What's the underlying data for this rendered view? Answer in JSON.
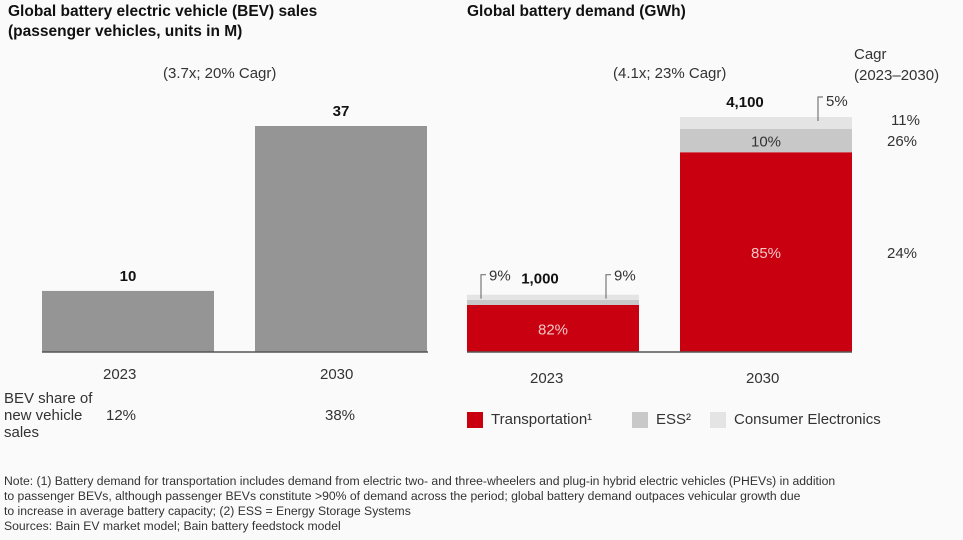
{
  "chart_data": [
    {
      "type": "bar",
      "title": "Global battery electric vehicle (BEV) sales",
      "subtitle": "(passenger vehicles, units in M)",
      "annotation": "(3.7x; 20% Cagr)",
      "categories": [
        "2023",
        "2030"
      ],
      "values": [
        10,
        37
      ],
      "value_labels": [
        "10",
        "37"
      ],
      "ylim": [
        0,
        37
      ],
      "grid": false,
      "bar_color": "#959595",
      "bottom_table": {
        "label": "BEV share of new vehicle sales",
        "label_lines": [
          "BEV share of",
          "new vehicle",
          "sales"
        ],
        "values": [
          "12%",
          "38%"
        ]
      }
    },
    {
      "type": "bar",
      "stacked": true,
      "title": "Global battery demand (GWh)",
      "annotation": "(4.1x; 23% Cagr)",
      "categories": [
        "2023",
        "2030"
      ],
      "totals": [
        1000,
        4100
      ],
      "total_labels": [
        "1,000",
        "4,100"
      ],
      "ylim": [
        0,
        4100
      ],
      "grid": false,
      "series": [
        {
          "name": "Transportation¹",
          "color": "#c8000f",
          "values": [
            82,
            85
          ],
          "labels": [
            "82%",
            "85%"
          ],
          "cagr": "24%"
        },
        {
          "name": "ESS²",
          "color": "#c8c8c8",
          "values": [
            9,
            10
          ],
          "labels": [
            "9%",
            "10%"
          ],
          "cagr": "26%"
        },
        {
          "name": "Consumer Electronics",
          "color": "#e4e4e4",
          "values": [
            9,
            5
          ],
          "labels": [
            "9%",
            "5%"
          ],
          "cagr": "11%"
        }
      ],
      "cagr_header": [
        "Cagr",
        "(2023–2030)"
      ],
      "legend": [
        "Transportation¹",
        "ESS²",
        "Consumer Electronics"
      ],
      "legend_position": "bottom"
    }
  ],
  "left": {
    "title_line1": "Global battery electric vehicle (BEV) sales",
    "title_line2": "(passenger vehicles, units in M)",
    "annotation": "(3.7x; 20% Cagr)",
    "share_label_lines": [
      "BEV share of",
      "new vehicle",
      "sales"
    ],
    "share_values": [
      "12%",
      "38%"
    ]
  },
  "right": {
    "title": "Global battery demand (GWh)",
    "annotation": "(4.1x; 23% Cagr)",
    "cagr_header_1": "Cagr",
    "cagr_header_2": "(2023–2030)",
    "cagr_values": [
      "11%",
      "26%",
      "24%"
    ],
    "legend": [
      {
        "label": "Transportation¹",
        "color": "#c8000f"
      },
      {
        "label": "ESS²",
        "color": "#c8c8c8"
      },
      {
        "label": "Consumer Electronics",
        "color": "#e4e4e4"
      }
    ]
  },
  "footnote": {
    "line1": "Note: (1) Battery demand for transportation includes demand from electric two- and three-wheelers and plug-in hybrid electric vehicles (PHEVs) in addition",
    "line2": "to passenger BEVs, although passenger BEVs constitute >90% of demand across the period; global battery demand outpaces vehicular growth due",
    "line3": "to increase in average battery capacity; (2) ESS = Energy Storage Systems",
    "sources": "Sources: Bain EV market model; Bain battery feedstock model"
  }
}
